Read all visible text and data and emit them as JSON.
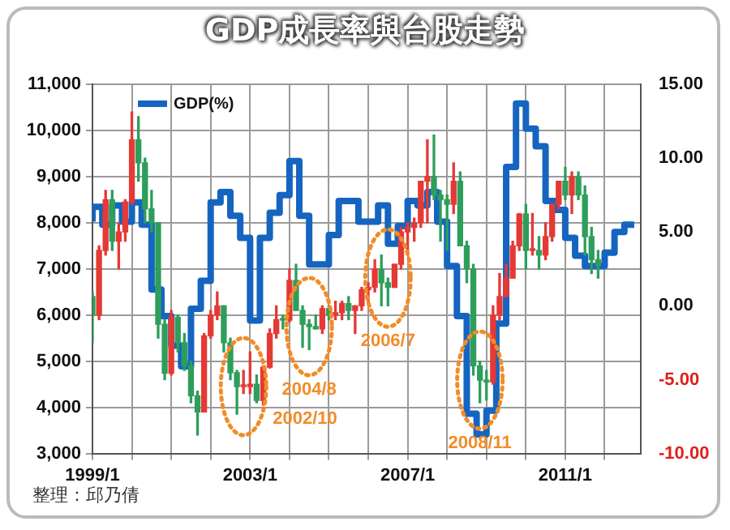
{
  "chart_data": {
    "type": "candlestick",
    "title": "GDP成長率與台股走勢",
    "annotations": [
      {
        "text": "2002/10",
        "x": "2002-11",
        "y": 4450
      },
      {
        "text": "2004/8",
        "x": "2004-07",
        "y": 5750
      },
      {
        "text": "2006/7",
        "x": "2006-07",
        "y": 6800
      },
      {
        "text": "2008/11",
        "x": "2008-11",
        "y": 4590
      },
      "整理：邱乃倩"
    ],
    "x": [
      "1999-01",
      "1999-03",
      "1999-05",
      "1999-07",
      "1999-09",
      "1999-11",
      "2000-01",
      "2000-03",
      "2000-05",
      "2000-07",
      "2000-09",
      "2000-11",
      "2001-01",
      "2001-03",
      "2001-05",
      "2001-07",
      "2001-09",
      "2001-11",
      "2002-01",
      "2002-03",
      "2002-05",
      "2002-07",
      "2002-09",
      "2002-11",
      "2003-01",
      "2003-03",
      "2003-05",
      "2003-07",
      "2003-09",
      "2003-11",
      "2004-01",
      "2004-03",
      "2004-05",
      "2004-07",
      "2004-09",
      "2004-11",
      "2005-01",
      "2005-03",
      "2005-05",
      "2005-07",
      "2005-09",
      "2005-11",
      "2006-01",
      "2006-03",
      "2006-05",
      "2006-07",
      "2006-09",
      "2006-11",
      "2007-01",
      "2007-03",
      "2007-05",
      "2007-07",
      "2007-09",
      "2007-11",
      "2008-01",
      "2008-03",
      "2008-05",
      "2008-07",
      "2008-09",
      "2008-11",
      "2009-01",
      "2009-03",
      "2009-05",
      "2009-07",
      "2009-09",
      "2009-11",
      "2010-01",
      "2010-03",
      "2010-05",
      "2010-07",
      "2010-09",
      "2010-11",
      "2011-01",
      "2011-03",
      "2011-05",
      "2011-07",
      "2011-09",
      "2011-11"
    ],
    "ohlc": [
      [
        6400,
        6500,
        5400,
        6000
      ],
      [
        6000,
        7500,
        5900,
        7400
      ],
      [
        7400,
        8700,
        7300,
        8500
      ],
      [
        8500,
        8700,
        7400,
        7600
      ],
      [
        7600,
        8000,
        7000,
        7800
      ],
      [
        7800,
        8500,
        7600,
        8450
      ],
      [
        8450,
        10400,
        8400,
        9800
      ],
      [
        9800,
        10300,
        8900,
        9300
      ],
      [
        9300,
        9400,
        8000,
        8300
      ],
      [
        8300,
        8700,
        7800,
        8000
      ],
      [
        8000,
        8000,
        5500,
        5800
      ],
      [
        5800,
        5900,
        4600,
        4740
      ],
      [
        4740,
        6100,
        4700,
        5950
      ],
      [
        5950,
        6000,
        5200,
        5400
      ],
      [
        5400,
        5600,
        4800,
        4900
      ],
      [
        4900,
        5000,
        4100,
        4250
      ],
      [
        4250,
        4350,
        3400,
        3900
      ],
      [
        3900,
        5600,
        3900,
        5550
      ],
      [
        5550,
        6100,
        5500,
        6000
      ],
      [
        6000,
        6500,
        5900,
        6200
      ],
      [
        6200,
        6200,
        5200,
        5400
      ],
      [
        5400,
        5500,
        4600,
        4750
      ],
      [
        4750,
        4800,
        3850,
        4450
      ],
      [
        4450,
        4800,
        4300,
        4450
      ],
      [
        4450,
        5200,
        4300,
        4500
      ],
      [
        4500,
        4700,
        4100,
        4150
      ],
      [
        4150,
        4900,
        4050,
        4870
      ],
      [
        4870,
        5700,
        4850,
        5600
      ],
      [
        5600,
        6200,
        5500,
        5900
      ],
      [
        5900,
        6000,
        5700,
        5890
      ],
      [
        5890,
        7000,
        5850,
        6750
      ],
      [
        6750,
        7100,
        6100,
        6100
      ],
      [
        6100,
        6200,
        5300,
        5800
      ],
      [
        5800,
        5900,
        5250,
        5750
      ],
      [
        5750,
        6000,
        5700,
        5700
      ],
      [
        5700,
        6200,
        5600,
        6140
      ],
      [
        6140,
        6200,
        5900,
        6000
      ],
      [
        6000,
        6300,
        5900,
        6050
      ],
      [
        6050,
        6300,
        5900,
        6250
      ],
      [
        6250,
        6400,
        5900,
        6100
      ],
      [
        6100,
        6200,
        5600,
        6200
      ],
      [
        6200,
        6600,
        6100,
        6550
      ],
      [
        6550,
        6700,
        6300,
        6600
      ],
      [
        6600,
        7200,
        6500,
        7000
      ],
      [
        7000,
        7300,
        6200,
        6700
      ],
      [
        6700,
        6800,
        6200,
        6600
      ],
      [
        6600,
        7100,
        6600,
        7100
      ],
      [
        7100,
        7900,
        7000,
        7800
      ],
      [
        7800,
        8000,
        7300,
        7900
      ],
      [
        7900,
        8100,
        7600,
        8000
      ],
      [
        8000,
        8900,
        7900,
        8900
      ],
      [
        8900,
        9800,
        8000,
        9000
      ],
      [
        9000,
        9900,
        8500,
        8600
      ],
      [
        8600,
        8700,
        7600,
        8500
      ],
      [
        8500,
        8600,
        7400,
        8400
      ],
      [
        8400,
        9300,
        8200,
        8900
      ],
      [
        8900,
        9100,
        7500,
        7500
      ],
      [
        7500,
        7600,
        6700,
        7000
      ],
      [
        7000,
        7100,
        4700,
        4900
      ],
      [
        4900,
        5000,
        4100,
        4590
      ],
      [
        4590,
        4800,
        4160,
        4550
      ],
      [
        4550,
        6200,
        4500,
        6000
      ],
      [
        6000,
        6900,
        5900,
        6400
      ],
      [
        6400,
        7100,
        6400,
        6800
      ],
      [
        6800,
        7600,
        6800,
        7500
      ],
      [
        7500,
        8200,
        7400,
        8190
      ],
      [
        8190,
        8400,
        7000,
        7400
      ],
      [
        7400,
        8200,
        7300,
        7400
      ],
      [
        7400,
        7700,
        7000,
        7300
      ],
      [
        7300,
        8000,
        7200,
        7700
      ],
      [
        7700,
        8400,
        7600,
        8400
      ],
      [
        8400,
        8900,
        8300,
        8900
      ],
      [
        8900,
        9200,
        8500,
        8600
      ],
      [
        8600,
        9100,
        8200,
        9000
      ],
      [
        9000,
        9100,
        8500,
        8600
      ],
      [
        8600,
        8800,
        7300,
        7700
      ],
      [
        7700,
        7900,
        6900,
        7200
      ],
      [
        7200,
        7400,
        6800,
        7070
      ]
    ],
    "colors": [
      "#2e9e5b",
      "#e53935",
      "#e53935",
      "#2e9e5b",
      "#e53935",
      "#e53935",
      "#e53935",
      "#2e9e5b",
      "#2e9e5b",
      "#2e9e5b",
      "#2e9e5b",
      "#2e9e5b",
      "#e53935",
      "#2e9e5b",
      "#2e9e5b",
      "#2e9e5b",
      "#2e9e5b",
      "#e53935",
      "#e53935",
      "#e53935",
      "#2e9e5b",
      "#2e9e5b",
      "#2e9e5b",
      "#e53935",
      "#e53935",
      "#2e9e5b",
      "#e53935",
      "#e53935",
      "#e53935",
      "#2e9e5b",
      "#e53935",
      "#2e9e5b",
      "#2e9e5b",
      "#2e9e5b",
      "#2e9e5b",
      "#e53935",
      "#2e9e5b",
      "#e53935",
      "#e53935",
      "#2e9e5b",
      "#e53935",
      "#e53935",
      "#e53935",
      "#e53935",
      "#2e9e5b",
      "#2e9e5b",
      "#e53935",
      "#e53935",
      "#e53935",
      "#e53935",
      "#e53935",
      "#e53935",
      "#2e9e5b",
      "#2e9e5b",
      "#2e9e5b",
      "#e53935",
      "#2e9e5b",
      "#2e9e5b",
      "#2e9e5b",
      "#2e9e5b",
      "#2e9e5b",
      "#e53935",
      "#e53935",
      "#e53935",
      "#e53935",
      "#e53935",
      "#2e9e5b",
      "#e53935",
      "#2e9e5b",
      "#e53935",
      "#e53935",
      "#e53935",
      "#2e9e5b",
      "#e53935",
      "#2e9e5b",
      "#2e9e5b",
      "#2e9e5b",
      "#2e9e5b"
    ],
    "series": [
      {
        "name": "GDP(%)",
        "type": "step",
        "axis": "y2",
        "color": "#1565c0",
        "x": [
          "1999-01",
          "1999-04",
          "1999-07",
          "1999-10",
          "2000-01",
          "2000-04",
          "2000-07",
          "2000-10",
          "2001-01",
          "2001-04",
          "2001-07",
          "2001-10",
          "2002-01",
          "2002-04",
          "2002-07",
          "2002-10",
          "2003-01",
          "2003-04",
          "2003-07",
          "2003-10",
          "2004-01",
          "2004-04",
          "2004-07",
          "2004-10",
          "2005-01",
          "2005-04",
          "2005-07",
          "2005-10",
          "2006-01",
          "2006-04",
          "2006-07",
          "2006-10",
          "2007-01",
          "2007-04",
          "2007-07",
          "2007-10",
          "2008-01",
          "2008-04",
          "2008-07",
          "2008-10",
          "2009-01",
          "2009-04",
          "2009-07",
          "2009-10",
          "2010-01",
          "2010-04",
          "2010-07",
          "2010-10",
          "2011-01",
          "2011-04",
          "2011-07",
          "2011-10",
          "2012-01",
          "2012-04",
          "2012-07",
          "2012-10"
        ],
        "values": [
          5.7,
          6.7,
          5.5,
          6.8,
          5.7,
          7.0,
          5.5,
          1.1,
          -0.7,
          -2.7,
          -4.1,
          -0.2,
          1.7,
          7.0,
          7.7,
          6.1,
          4.6,
          -1.0,
          4.6,
          6.3,
          7.5,
          9.8,
          6.1,
          2.8,
          2.8,
          4.8,
          7.1,
          7.1,
          5.7,
          5.7,
          6.8,
          4.2,
          5.4,
          7.1,
          6.8,
          7.7,
          5.7,
          2.7,
          -0.7,
          -7.3,
          -8.7,
          -7.1,
          -1.2,
          9.4,
          13.7,
          12.0,
          10.8,
          7.1,
          6.5,
          4.6,
          3.4,
          2.7,
          2.7,
          3.6,
          5.0,
          5.5
        ]
      }
    ],
    "xlim": [
      "1999-01",
      "2012-12"
    ],
    "xticks": [
      {
        "value": "1999-01",
        "label": "1999/1"
      },
      {
        "value": "2000-01",
        "label": null
      },
      {
        "value": "2001-01",
        "label": null
      },
      {
        "value": "2002-01",
        "label": null
      },
      {
        "value": "2003-01",
        "label": "2003/1"
      },
      {
        "value": "2004-01",
        "label": null
      },
      {
        "value": "2005-01",
        "label": null
      },
      {
        "value": "2006-01",
        "label": null
      },
      {
        "value": "2007-01",
        "label": "2007/1"
      },
      {
        "value": "2008-01",
        "label": null
      },
      {
        "value": "2009-01",
        "label": null
      },
      {
        "value": "2010-01",
        "label": null
      },
      {
        "value": "2011-01",
        "label": "2011/1"
      },
      {
        "value": "2012-01",
        "label": null
      }
    ],
    "ylim": [
      3000,
      11000
    ],
    "yticks": [
      {
        "value": 3000,
        "label": "3,000"
      },
      {
        "value": 4000,
        "label": "4,000"
      },
      {
        "value": 5000,
        "label": "5,000"
      },
      {
        "value": 6000,
        "label": "6,000"
      },
      {
        "value": 7000,
        "label": "7,000"
      },
      {
        "value": 8000,
        "label": "8,000"
      },
      {
        "value": 9000,
        "label": "9,000"
      },
      {
        "value": 10000,
        "label": "10,000"
      },
      {
        "value": 11000,
        "label": "11,000"
      }
    ],
    "y2lim": [
      -10,
      15
    ],
    "y2ticks": [
      {
        "value": -10,
        "label": "-10.00"
      },
      {
        "value": -5,
        "label": "-5.00"
      },
      {
        "value": 0,
        "label": "0.00"
      },
      {
        "value": 5,
        "label": "5.00"
      },
      {
        "value": 10,
        "label": "10.00"
      },
      {
        "value": 15,
        "label": "15.00"
      }
    ],
    "grid": true,
    "legend": "top left"
  }
}
